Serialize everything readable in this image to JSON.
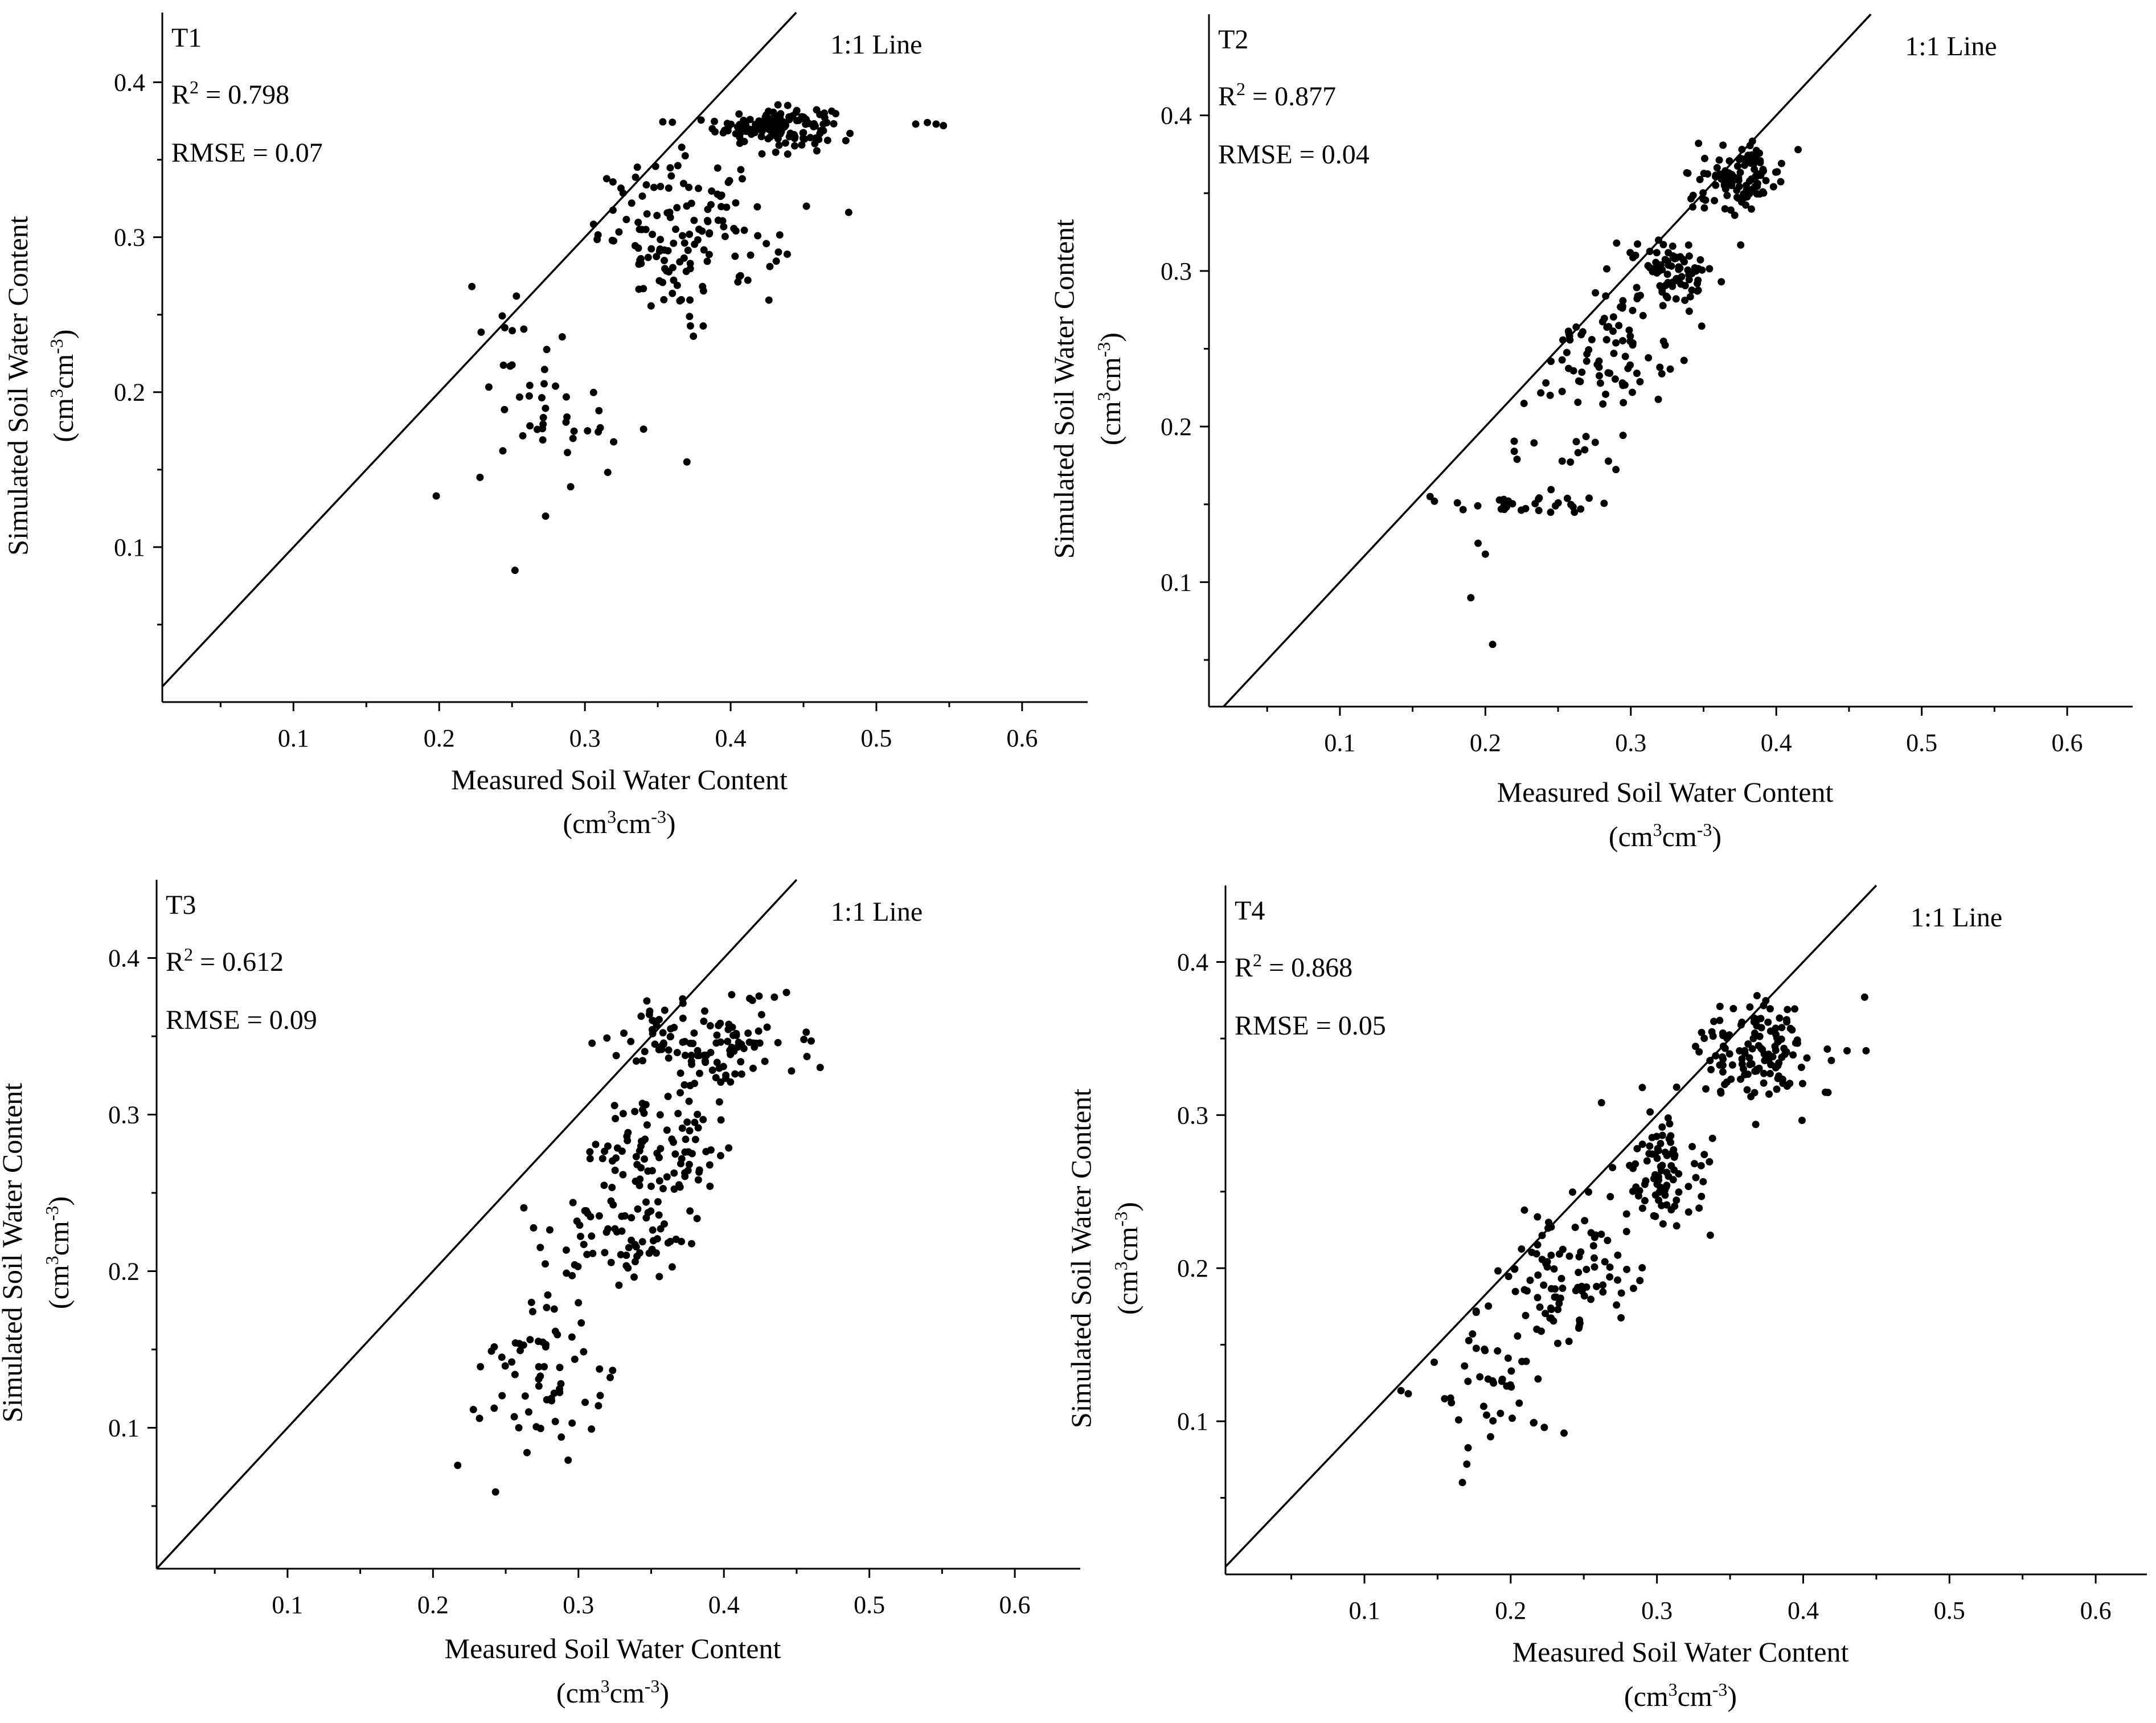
{
  "chart_data": [
    {
      "type": "scatter",
      "label": "T1",
      "r2_value": "0.798",
      "rmse_text": "RMSE = 0.07",
      "line_label": "1:1 Line",
      "xlabel_main": "Measured Soil Water Content",
      "ylabel_main": "Simulated Soil Water Content",
      "unit_base": "cm",
      "unit_exp1": "3",
      "unit_mid": "cm",
      "unit_exp2": "-3",
      "unit_open": "(",
      "unit_close": ")",
      "xlim": [
        0.01,
        0.645
      ],
      "ylim": [
        0.0,
        0.445
      ],
      "xticks": [
        0.1,
        0.2,
        0.3,
        0.4,
        0.5,
        0.6
      ],
      "yticks": [
        0.1,
        0.2,
        0.3,
        0.4
      ],
      "tick_labels_x": [
        "0.1",
        "0.2",
        "0.3",
        "0.4",
        "0.5",
        "0.6"
      ],
      "tick_labels_y": [
        "0.1",
        "0.2",
        "0.3",
        "0.4"
      ],
      "clusters": [
        {
          "cx": 0.43,
          "cy": 0.372,
          "sx": 0.02,
          "sy": 0.006,
          "n": 150
        },
        {
          "cx": 0.37,
          "cy": 0.3,
          "sx": 0.03,
          "sy": 0.025,
          "n": 140
        },
        {
          "cx": 0.28,
          "cy": 0.2,
          "sx": 0.03,
          "sy": 0.025,
          "n": 45
        }
      ],
      "extra_points": [
        [
          0.252,
          0.085
        ],
        [
          0.198,
          0.133
        ],
        [
          0.273,
          0.12
        ],
        [
          0.228,
          0.145
        ],
        [
          0.253,
          0.262
        ],
        [
          0.527,
          0.373
        ],
        [
          0.535,
          0.374
        ],
        [
          0.541,
          0.373
        ],
        [
          0.546,
          0.372
        ],
        [
          0.481,
          0.316
        ],
        [
          0.452,
          0.32
        ]
      ]
    },
    {
      "type": "scatter",
      "label": "T2",
      "r2_value": "0.877",
      "rmse_text": "RMSE = 0.04",
      "line_label": "1:1 Line",
      "xlabel_main": "Measured Soil Water Content",
      "ylabel_main": "Simulated Soil Water Content",
      "unit_base": "cm",
      "unit_exp1": "3",
      "unit_mid": "cm",
      "unit_exp2": "-3",
      "unit_open": "(",
      "unit_close": ")",
      "xlim": [
        0.01,
        0.645
      ],
      "ylim": [
        0.02,
        0.465
      ],
      "xticks": [
        0.1,
        0.2,
        0.3,
        0.4,
        0.5,
        0.6
      ],
      "yticks": [
        0.1,
        0.2,
        0.3,
        0.4
      ],
      "tick_labels_x": [
        "0.1",
        "0.2",
        "0.3",
        "0.4",
        "0.5",
        "0.6"
      ],
      "tick_labels_y": [
        "0.1",
        "0.2",
        "0.3",
        "0.4"
      ],
      "clusters": [
        {
          "cx": 0.375,
          "cy": 0.36,
          "sx": 0.015,
          "sy": 0.01,
          "n": 110
        },
        {
          "cx": 0.33,
          "cy": 0.3,
          "sx": 0.015,
          "sy": 0.01,
          "n": 80
        },
        {
          "cx": 0.275,
          "cy": 0.245,
          "sx": 0.025,
          "sy": 0.02,
          "n": 80
        },
        {
          "cx": 0.24,
          "cy": 0.15,
          "sx": 0.03,
          "sy": 0.004,
          "n": 30
        },
        {
          "cx": 0.24,
          "cy": 0.185,
          "sx": 0.025,
          "sy": 0.006,
          "n": 14
        }
      ],
      "extra_points": [
        [
          0.19,
          0.09
        ],
        [
          0.205,
          0.06
        ],
        [
          0.162,
          0.155
        ],
        [
          0.165,
          0.152
        ],
        [
          0.195,
          0.125
        ],
        [
          0.2,
          0.118
        ],
        [
          0.415,
          0.378
        ]
      ]
    },
    {
      "type": "scatter",
      "label": "T3",
      "r2_value": "0.612",
      "rmse_text": "RMSE = 0.09",
      "line_label": "1:1 Line",
      "xlabel_main": "Measured Soil Water Content",
      "ylabel_main": "Simulated Soil Water Content",
      "unit_base": "cm",
      "unit_exp1": "3",
      "unit_mid": "cm",
      "unit_exp2": "-3",
      "unit_open": "(",
      "unit_close": ")",
      "xlim": [
        0.01,
        0.645
      ],
      "ylim": [
        0.01,
        0.45
      ],
      "xticks": [
        0.1,
        0.2,
        0.3,
        0.4,
        0.5,
        0.6
      ],
      "yticks": [
        0.1,
        0.2,
        0.3,
        0.4
      ],
      "tick_labels_x": [
        "0.1",
        "0.2",
        "0.3",
        "0.4",
        "0.5",
        "0.6"
      ],
      "tick_labels_y": [
        "0.1",
        "0.2",
        "0.3",
        "0.4"
      ],
      "clusters": [
        {
          "cx": 0.39,
          "cy": 0.345,
          "sx": 0.03,
          "sy": 0.015,
          "n": 120
        },
        {
          "cx": 0.355,
          "cy": 0.275,
          "sx": 0.025,
          "sy": 0.018,
          "n": 90
        },
        {
          "cx": 0.33,
          "cy": 0.22,
          "sx": 0.025,
          "sy": 0.015,
          "n": 70
        },
        {
          "cx": 0.28,
          "cy": 0.135,
          "sx": 0.025,
          "sy": 0.025,
          "n": 60
        }
      ],
      "extra_points": [
        [
          0.217,
          0.076
        ],
        [
          0.243,
          0.059
        ],
        [
          0.259,
          0.1
        ],
        [
          0.46,
          0.347
        ],
        [
          0.455,
          0.348
        ],
        [
          0.443,
          0.378
        ],
        [
          0.232,
          0.106
        ]
      ]
    },
    {
      "type": "scatter",
      "label": "T4",
      "r2_value": "0.868",
      "rmse_text": "RMSE = 0.05",
      "line_label": "1:1 Line",
      "xlabel_main": "Measured Soil Water Content",
      "ylabel_main": "Simulated Soil Water Content",
      "unit_base": "cm",
      "unit_exp1": "3",
      "unit_mid": "cm",
      "unit_exp2": "-3",
      "unit_open": "(",
      "unit_close": ")",
      "xlim": [
        0.005,
        0.635
      ],
      "ylim": [
        0.0,
        0.45
      ],
      "xticks": [
        0.1,
        0.2,
        0.3,
        0.4,
        0.5,
        0.6
      ],
      "yticks": [
        0.1,
        0.2,
        0.3,
        0.4
      ],
      "tick_labels_x": [
        "0.1",
        "0.2",
        "0.3",
        "0.4",
        "0.5",
        "0.6"
      ],
      "tick_labels_y": [
        "0.1",
        "0.2",
        "0.3",
        "0.4"
      ],
      "clusters": [
        {
          "cx": 0.37,
          "cy": 0.34,
          "sx": 0.02,
          "sy": 0.018,
          "n": 130
        },
        {
          "cx": 0.305,
          "cy": 0.265,
          "sx": 0.015,
          "sy": 0.02,
          "n": 90
        },
        {
          "cx": 0.24,
          "cy": 0.2,
          "sx": 0.025,
          "sy": 0.025,
          "n": 100
        },
        {
          "cx": 0.185,
          "cy": 0.12,
          "sx": 0.02,
          "sy": 0.025,
          "n": 40
        }
      ],
      "extra_points": [
        [
          0.167,
          0.06
        ],
        [
          0.17,
          0.072
        ],
        [
          0.125,
          0.12
        ],
        [
          0.13,
          0.118
        ],
        [
          0.442,
          0.377
        ],
        [
          0.443,
          0.342
        ],
        [
          0.43,
          0.342
        ],
        [
          0.29,
          0.318
        ],
        [
          0.223,
          0.096
        ]
      ]
    }
  ]
}
